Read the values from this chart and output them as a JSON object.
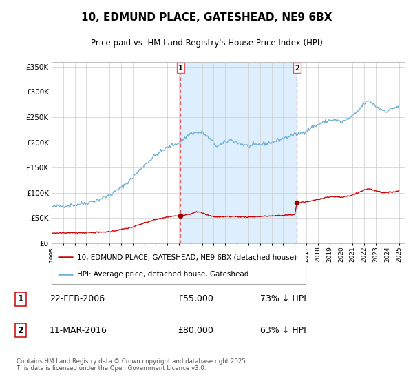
{
  "title": "10, EDMUND PLACE, GATESHEAD, NE9 6BX",
  "subtitle": "Price paid vs. HM Land Registry's House Price Index (HPI)",
  "legend_line1": "10, EDMUND PLACE, GATESHEAD, NE9 6BX (detached house)",
  "legend_line2": "HPI: Average price, detached house, Gateshead",
  "footnote": "Contains HM Land Registry data © Crown copyright and database right 2025.\nThis data is licensed under the Open Government Licence v3.0.",
  "sale1_date": "22-FEB-2006",
  "sale1_price": 55000,
  "sale1_price_str": "£55,000",
  "sale1_hpi": "73% ↓ HPI",
  "sale2_date": "11-MAR-2016",
  "sale2_price": 80000,
  "sale2_price_str": "£80,000",
  "sale2_hpi": "63% ↓ HPI",
  "hpi_color": "#6baed6",
  "hpi_shade_color": "#ddeeff",
  "price_color": "#cc0000",
  "vline_color": "#e06060",
  "dot_color": "#990000",
  "ylim": [
    0,
    360000
  ],
  "yticks": [
    0,
    50000,
    100000,
    150000,
    200000,
    250000,
    300000,
    350000
  ],
  "sale1_x": 2006.14,
  "sale2_x": 2016.19,
  "xmin": 1995.0,
  "xmax": 2025.5
}
